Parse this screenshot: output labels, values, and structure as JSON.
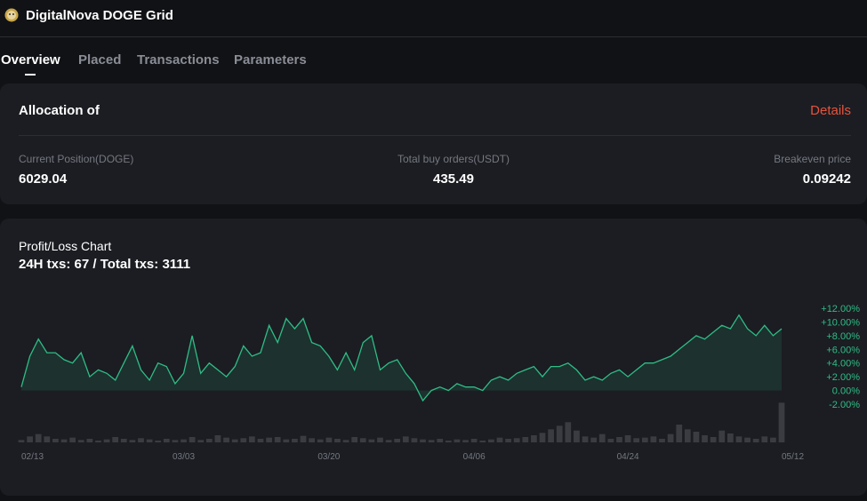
{
  "header": {
    "title": "DigitalNova DOGE Grid"
  },
  "tabs": [
    "Overview",
    "Placed",
    "Transactions",
    "Parameters"
  ],
  "allocation": {
    "title": "Allocation of",
    "details": "Details",
    "stats": [
      {
        "label": "Current Position(DOGE)",
        "value": "6029.04"
      },
      {
        "label": "Total buy orders(USDT)",
        "value": "435.49"
      },
      {
        "label": "Breakeven price",
        "value": "0.09242"
      }
    ]
  },
  "chart_data": {
    "type": "area",
    "title": "Profit/Loss Chart",
    "subtitle": "24H txs: 67 / Total txs: 3111",
    "categories": [
      "02/13",
      null,
      null,
      null,
      null,
      null,
      null,
      null,
      null,
      null,
      null,
      null,
      null,
      null,
      null,
      null,
      null,
      null,
      null,
      "03/03",
      null,
      null,
      null,
      null,
      null,
      null,
      null,
      null,
      null,
      null,
      null,
      null,
      null,
      null,
      null,
      null,
      "03/20",
      null,
      null,
      null,
      null,
      null,
      null,
      null,
      null,
      null,
      null,
      null,
      null,
      null,
      null,
      null,
      null,
      "04/06",
      null,
      null,
      null,
      null,
      null,
      null,
      null,
      null,
      null,
      null,
      null,
      null,
      null,
      null,
      null,
      null,
      null,
      "04/24",
      null,
      null,
      null,
      null,
      null,
      null,
      null,
      null,
      null,
      null,
      null,
      null,
      null,
      null,
      null,
      null,
      null,
      "05/12"
    ],
    "series": [
      {
        "color": "#2ebd85",
        "values": [
          0.5,
          5,
          7.5,
          5.5,
          5.5,
          4.5,
          4,
          5.5,
          2,
          3,
          2.5,
          1.5,
          4,
          6.5,
          3,
          1.5,
          4,
          3.5,
          1,
          2.5,
          8,
          2.5,
          4,
          3,
          2,
          3.5,
          6.5,
          5,
          5.5,
          9.5,
          7,
          10.5,
          9,
          10.5,
          7,
          6.5,
          5,
          3,
          5.5,
          3,
          7,
          8,
          3,
          4,
          4.5,
          2.5,
          1,
          -1.5,
          0,
          0.5,
          0,
          1,
          0.5,
          0.5,
          0,
          1.5,
          2,
          1.5,
          2.5,
          3,
          3.5,
          2,
          3.5,
          3.5,
          4,
          3,
          1.5,
          2,
          1.5,
          2.5,
          3,
          2,
          3,
          4,
          4,
          4.5,
          5,
          6,
          7,
          8,
          7.5,
          8.5,
          9.5,
          9,
          11,
          9,
          8,
          9.5,
          8,
          9
        ]
      },
      {
        "color": "#3a3c42",
        "axis": "y2",
        "values": [
          4,
          10,
          14,
          10,
          6,
          5,
          8,
          4,
          6,
          3,
          5,
          9,
          6,
          4,
          7,
          5,
          3,
          6,
          4,
          5,
          9,
          4,
          6,
          12,
          8,
          5,
          7,
          10,
          6,
          8,
          9,
          5,
          6,
          11,
          7,
          5,
          8,
          6,
          4,
          9,
          7,
          5,
          8,
          4,
          6,
          10,
          7,
          5,
          4,
          6,
          3,
          5,
          4,
          6,
          3,
          5,
          8,
          6,
          7,
          9,
          12,
          16,
          22,
          28,
          34,
          20,
          10,
          8,
          14,
          6,
          9,
          12,
          7,
          8,
          10,
          6,
          14,
          30,
          22,
          18,
          12,
          9,
          20,
          15,
          10,
          8,
          6,
          10,
          8,
          67
        ]
      }
    ],
    "ylim": [
      -2.5,
      13
    ],
    "yticks": [
      {
        "value": -2,
        "label": "-2.00%"
      },
      {
        "value": 0,
        "label": "0.00%"
      },
      {
        "value": 2,
        "label": "+2.00%"
      },
      {
        "value": 4,
        "label": "+4.00%"
      },
      {
        "value": 6,
        "label": "+6.00%"
      },
      {
        "value": 8,
        "label": "+8.00%"
      },
      {
        "value": 10,
        "label": "+10.00%"
      },
      {
        "value": 12,
        "label": "+12.00%"
      }
    ],
    "y2lim": [
      0,
      75
    ]
  }
}
